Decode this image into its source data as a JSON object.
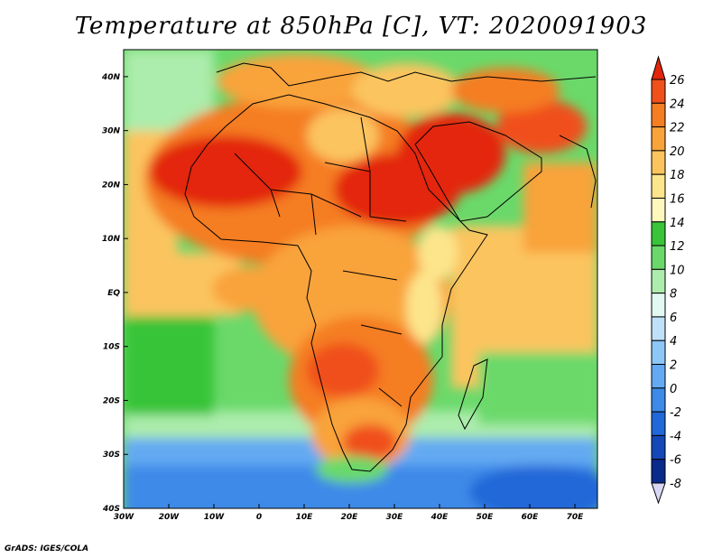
{
  "title": "Temperature at 850hPa [C], VT: 2020091903",
  "credit": "GrADS: IGES/COLA",
  "lon_ticks": [
    "30W",
    "20W",
    "10W",
    "0",
    "10E",
    "20E",
    "30E",
    "40E",
    "50E",
    "60E",
    "70E"
  ],
  "lat_ticks": [
    "40N",
    "30N",
    "20N",
    "10N",
    "EQ",
    "10S",
    "20S",
    "30S",
    "40S"
  ],
  "colorbar": {
    "labels": [
      "26",
      "24",
      "22",
      "20",
      "18",
      "16",
      "14",
      "12",
      "10",
      "8",
      "6",
      "4",
      "2",
      "0",
      "-2",
      "-4",
      "-6",
      "-8"
    ],
    "colors": [
      "#e3260b",
      "#f0501a",
      "#f57d22",
      "#f9a33b",
      "#fbc45e",
      "#fde58c",
      "#fef8bc",
      "#39c439",
      "#6ad96a",
      "#acecac",
      "#e2f8f2",
      "#bfe1f8",
      "#8dc7f7",
      "#64aaf2",
      "#3d8ae8",
      "#2168d8",
      "#1448b8",
      "#0a2a8c",
      "#080a5a",
      "#d8d8f6"
    ]
  },
  "map": {
    "lon_range": [
      -30,
      75
    ],
    "lat_range": [
      -40,
      45
    ],
    "colors": {
      "ocean_cold": "#3d8ae8",
      "ocean_cool": "#64aaf2",
      "ocean_mild": "#acecac",
      "ocean_green": "#6ad96a",
      "warm": "#fbc45e",
      "warmer": "#f9a33b",
      "hot": "#f57d22",
      "hotter": "#f0501a",
      "hottest": "#e3260b",
      "mild": "#fde58c"
    }
  }
}
